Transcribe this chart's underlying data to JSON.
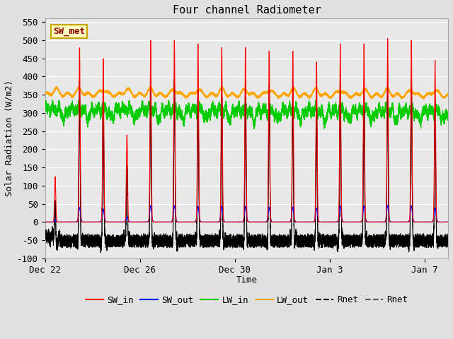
{
  "title": "Four channel Radiometer",
  "xlabel": "Time",
  "ylabel": "Solar Radiation (W/m2)",
  "ylim": [
    -100,
    560
  ],
  "yticks": [
    -100,
    -50,
    0,
    50,
    100,
    150,
    200,
    250,
    300,
    350,
    400,
    450,
    500,
    550
  ],
  "xtick_labels": [
    "Dec 22",
    "Dec 26",
    "Dec 30",
    "Jan 3",
    "Jan 7"
  ],
  "xtick_positions": [
    0,
    4,
    8,
    12,
    16
  ],
  "xlim": [
    0,
    17
  ],
  "annotation_text": "SW_met",
  "annotation_color": "#8B0000",
  "annotation_bg": "#FFFFC0",
  "annotation_border": "#C8A000",
  "colors": {
    "SW_in": "#FF0000",
    "SW_out": "#0000FF",
    "LW_in": "#00CC00",
    "LW_out": "#FFA500",
    "Rnet_black": "#000000",
    "Rnet_dark": "#444444"
  },
  "legend_entries": [
    "SW_in",
    "SW_out",
    "LW_in",
    "LW_out",
    "Rnet",
    "Rnet"
  ],
  "legend_colors": [
    "#FF0000",
    "#0000FF",
    "#00CC00",
    "#FFA500",
    "#000000",
    "#555555"
  ],
  "fig_bg": "#E0E0E0",
  "plot_bg": "#E8E8E8",
  "grid_color": "#FFFFFF",
  "seed": 42
}
